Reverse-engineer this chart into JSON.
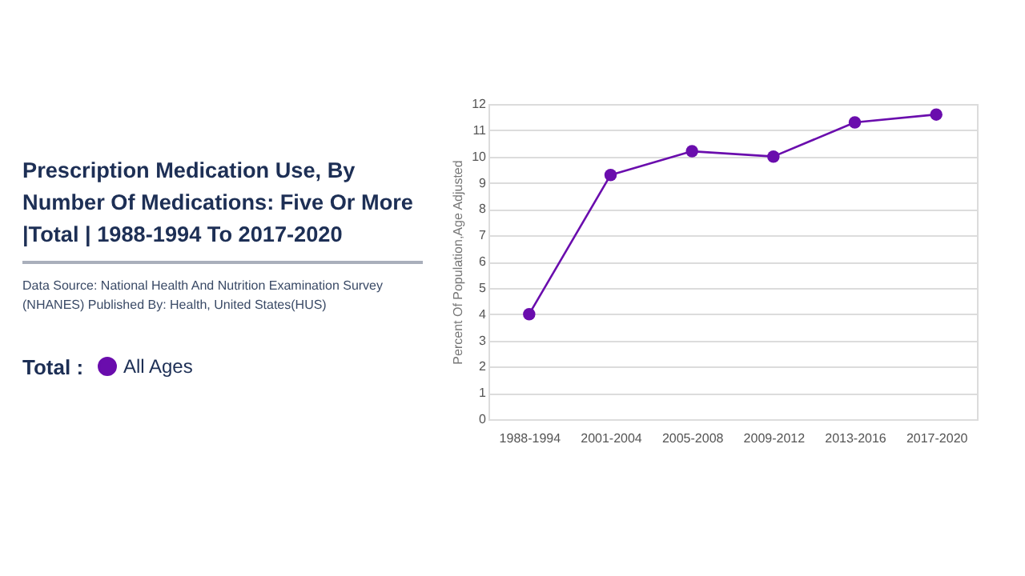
{
  "chart_data": {
    "type": "line",
    "title": "Prescription Medication Use, By Number Of Medications: Five Or More |Total | 1988-1994 To 2017-2020",
    "annotations": [
      "Data Source: National Health And Nutrition Examination Survey (NHANES) Published By: Health, United States(HUS)"
    ],
    "ylabel": "Percent Of Population,Age Adjusted",
    "legend_title": "Total :",
    "categories": [
      "1988-1994",
      "2001-2004",
      "2005-2008",
      "2009-2012",
      "2013-2016",
      "2017-2020"
    ],
    "series": [
      {
        "name": "All Ages",
        "color": "#6a0dad",
        "values": [
          4.0,
          9.3,
          10.2,
          10.0,
          11.3,
          11.6
        ]
      }
    ],
    "ylim": [
      0,
      12
    ],
    "yticks": [
      0,
      1,
      2,
      3,
      4,
      5,
      6,
      7,
      8,
      9,
      10,
      11,
      12
    ],
    "grid": "y",
    "legend": "left",
    "marker": "circle",
    "line_style": "solid"
  }
}
